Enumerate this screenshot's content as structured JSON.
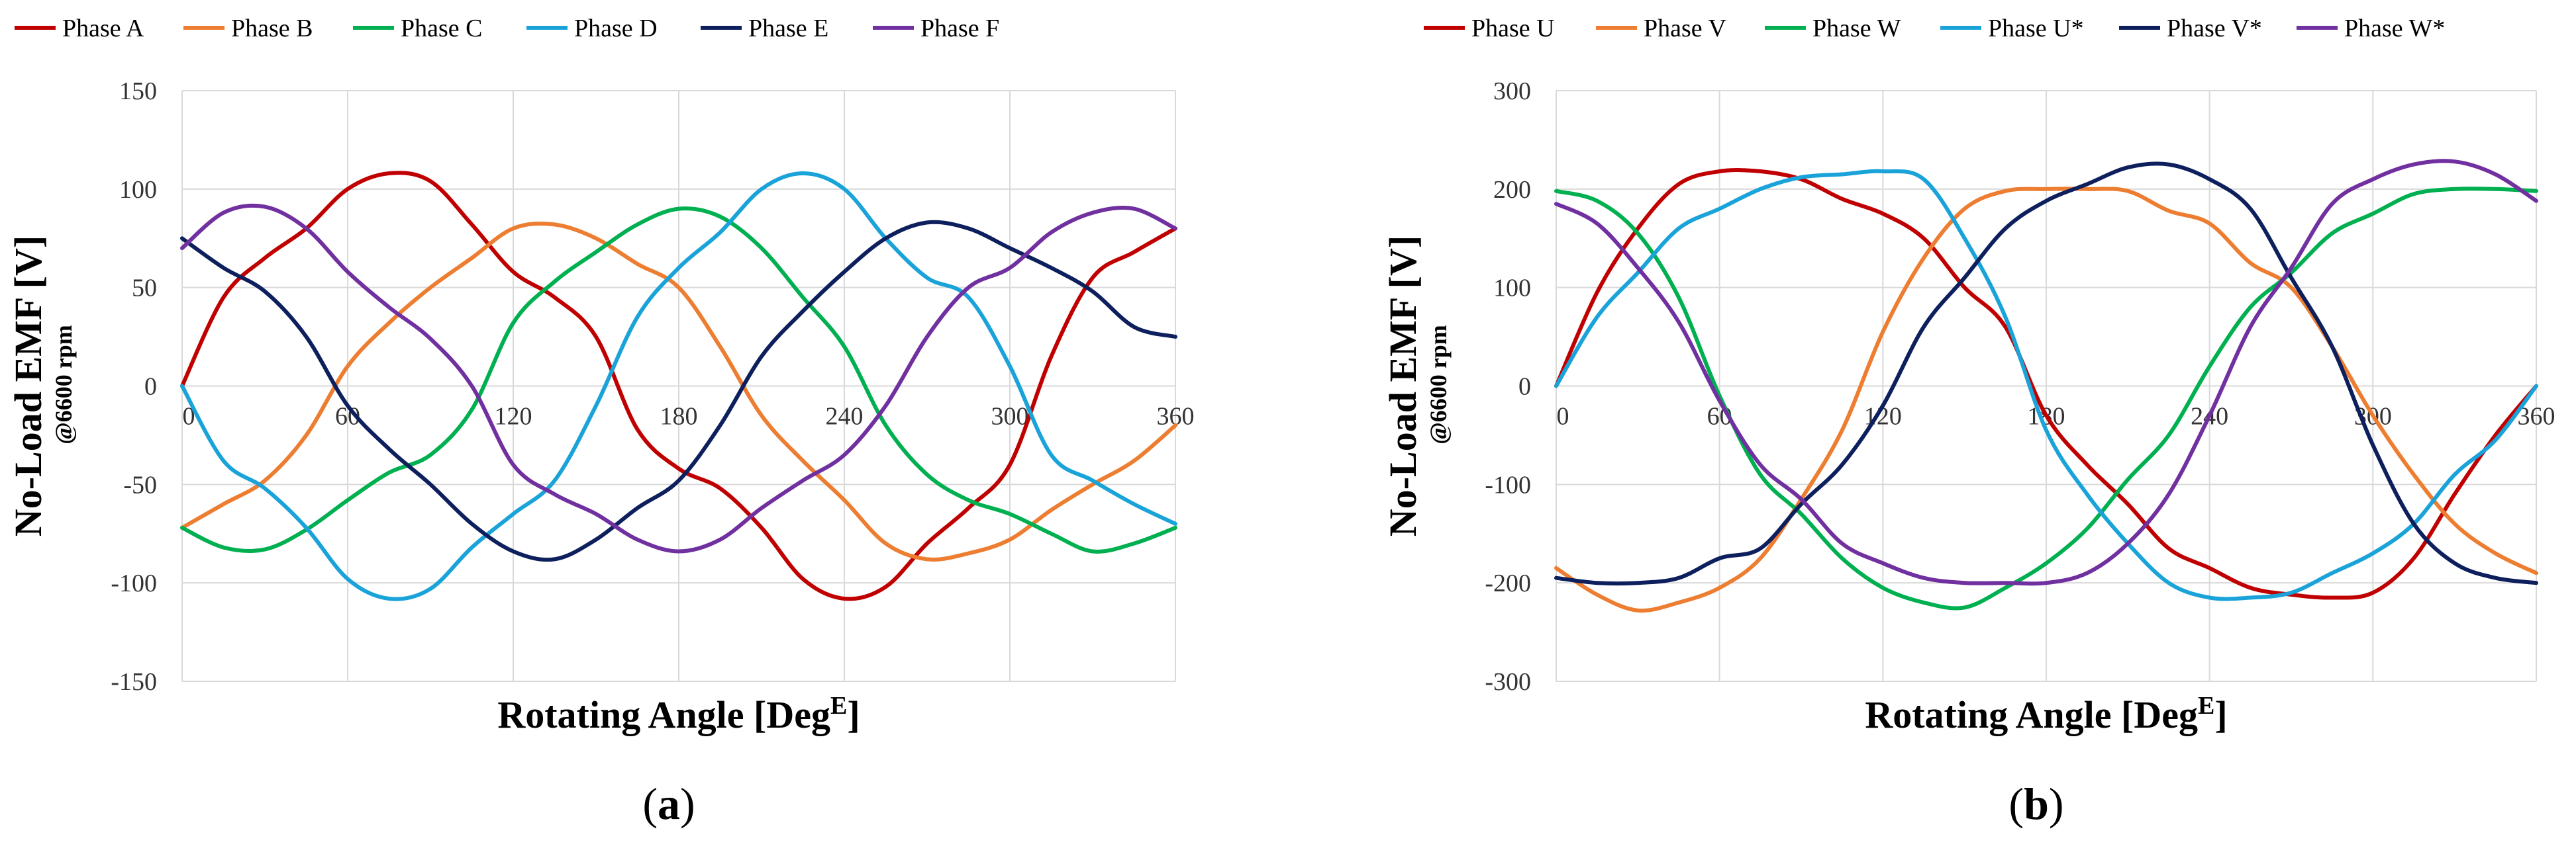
{
  "chart_data": [
    {
      "type": "line",
      "panel_label": "a",
      "xlabel": "Rotating Angle [Deg",
      "xlabel_sup": "E",
      "xlabel_end": "]",
      "ylabel": "No-Load EMF [V]",
      "ylabel_sub": "@6600 rpm",
      "xlim": [
        0,
        360
      ],
      "ylim": [
        -150,
        150
      ],
      "xticks": [
        "0",
        "60",
        "120",
        "180",
        "240",
        "300",
        "360"
      ],
      "xtick_values": [
        0,
        60,
        120,
        180,
        240,
        300,
        360
      ],
      "yticks": [
        "-150",
        "-100",
        "-50",
        "0",
        "50",
        "100",
        "150"
      ],
      "ytick_values": [
        -150,
        -100,
        -50,
        0,
        50,
        100,
        150
      ],
      "grid": true,
      "legend_position": "top",
      "x": [
        0,
        15,
        30,
        45,
        60,
        75,
        90,
        105,
        120,
        135,
        150,
        165,
        180,
        195,
        210,
        225,
        240,
        255,
        270,
        285,
        300,
        315,
        330,
        345,
        360
      ],
      "series": [
        {
          "name": "Phase A",
          "color": "#c00000",
          "values": [
            0,
            45,
            65,
            80,
            100,
            108,
            104,
            82,
            58,
            45,
            25,
            -22,
            -42,
            -52,
            -72,
            -98,
            -108,
            -102,
            -80,
            -62,
            -40,
            15,
            55,
            68,
            80
          ]
        },
        {
          "name": "Phase B",
          "color": "#ed7d31",
          "values": [
            -72,
            -60,
            -48,
            -25,
            10,
            32,
            50,
            65,
            80,
            82,
            75,
            62,
            50,
            20,
            -15,
            -38,
            -58,
            -80,
            -88,
            -85,
            -78,
            -63,
            -50,
            -38,
            -20
          ]
        },
        {
          "name": "Phase C",
          "color": "#00b050",
          "values": [
            -72,
            -82,
            -83,
            -73,
            -58,
            -44,
            -35,
            -12,
            32,
            53,
            68,
            82,
            90,
            86,
            70,
            45,
            20,
            -20,
            -45,
            -58,
            -65,
            -75,
            -84,
            -80,
            -72
          ]
        },
        {
          "name": "Phase D",
          "color": "#1aa3d9",
          "values": [
            0,
            -38,
            -52,
            -72,
            -98,
            -108,
            -103,
            -82,
            -65,
            -48,
            -10,
            35,
            60,
            78,
            100,
            108,
            100,
            75,
            55,
            45,
            10,
            -35,
            -48,
            -60,
            -70
          ]
        },
        {
          "name": "Phase E",
          "color": "#0d1f5c",
          "values": [
            75,
            60,
            48,
            25,
            -10,
            -32,
            -50,
            -70,
            -84,
            -88,
            -78,
            -62,
            -48,
            -20,
            15,
            38,
            58,
            75,
            83,
            80,
            70,
            60,
            48,
            30,
            25
          ]
        },
        {
          "name": "Phase F",
          "color": "#7030a0",
          "values": [
            70,
            88,
            91,
            80,
            58,
            40,
            24,
            0,
            -40,
            -55,
            -65,
            -78,
            -84,
            -78,
            -62,
            -48,
            -35,
            -10,
            25,
            50,
            60,
            78,
            88,
            90,
            80
          ]
        }
      ]
    },
    {
      "type": "line",
      "panel_label": "b",
      "xlabel": "Rotating Angle [Deg",
      "xlabel_sup": "E",
      "xlabel_end": "]",
      "ylabel": "No-Load EMF [V]",
      "ylabel_sub": "@6600 rpm",
      "xlim": [
        0,
        360
      ],
      "ylim": [
        -300,
        300
      ],
      "xticks": [
        "0",
        "60",
        "120",
        "180",
        "240",
        "300",
        "360"
      ],
      "xtick_values": [
        0,
        60,
        120,
        180,
        240,
        300,
        360
      ],
      "yticks": [
        "-300",
        "-200",
        "-100",
        "0",
        "100",
        "200",
        "300"
      ],
      "ytick_values": [
        -300,
        -200,
        -100,
        0,
        100,
        200,
        300
      ],
      "grid": true,
      "legend_position": "top",
      "x": [
        0,
        15,
        30,
        45,
        60,
        75,
        90,
        105,
        120,
        135,
        150,
        165,
        180,
        195,
        210,
        225,
        240,
        255,
        270,
        285,
        300,
        315,
        330,
        345,
        360
      ],
      "series": [
        {
          "name": "Phase U",
          "color": "#c00000",
          "values": [
            0,
            95,
            160,
            205,
            218,
            218,
            210,
            190,
            175,
            150,
            100,
            60,
            -30,
            -80,
            -120,
            -165,
            -185,
            -205,
            -212,
            -215,
            -210,
            -175,
            -110,
            -50,
            0
          ]
        },
        {
          "name": "Phase V",
          "color": "#ed7d31",
          "values": [
            -185,
            -212,
            -228,
            -220,
            -205,
            -175,
            -115,
            -45,
            55,
            130,
            180,
            198,
            200,
            200,
            198,
            178,
            165,
            125,
            100,
            40,
            -30,
            -90,
            -140,
            -170,
            -190
          ]
        },
        {
          "name": "Phase W",
          "color": "#00b050",
          "values": [
            198,
            188,
            155,
            90,
            -10,
            -90,
            -130,
            -175,
            -205,
            -220,
            -225,
            -205,
            -180,
            -145,
            -95,
            -50,
            20,
            80,
            115,
            155,
            175,
            195,
            200,
            200,
            198
          ]
        },
        {
          "name": "Phase U*",
          "color": "#1aa3d9",
          "values": [
            0,
            70,
            115,
            160,
            180,
            200,
            212,
            215,
            218,
            210,
            150,
            70,
            -45,
            -110,
            -160,
            -200,
            -215,
            -215,
            -210,
            -190,
            -170,
            -140,
            -90,
            -55,
            0
          ]
        },
        {
          "name": "Phase V*",
          "color": "#0d1f5c",
          "values": [
            -195,
            -200,
            -200,
            -195,
            -175,
            -165,
            -120,
            -80,
            -20,
            60,
            110,
            160,
            188,
            205,
            222,
            225,
            210,
            180,
            110,
            40,
            -60,
            -140,
            -180,
            -195,
            -200
          ]
        },
        {
          "name": "Phase W*",
          "color": "#7030a0",
          "values": [
            185,
            165,
            120,
            65,
            -15,
            -80,
            -115,
            -160,
            -180,
            -195,
            -200,
            -200,
            -200,
            -190,
            -160,
            -110,
            -30,
            60,
            120,
            185,
            210,
            225,
            228,
            215,
            188
          ]
        }
      ]
    }
  ]
}
